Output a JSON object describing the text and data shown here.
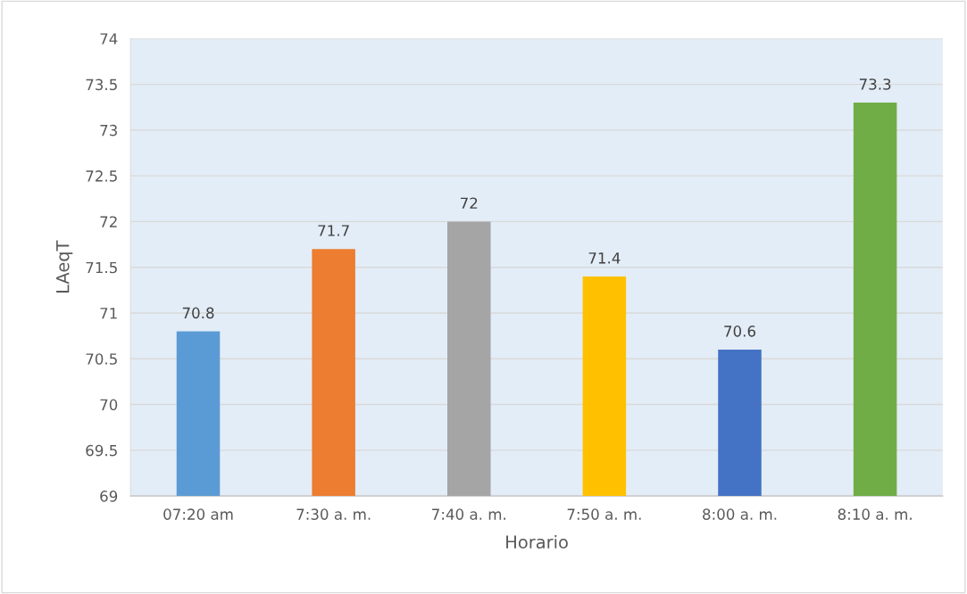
{
  "chart_data": {
    "type": "bar",
    "categories": [
      "07:20 am",
      "7:30 a. m.",
      "7:40 a. m.",
      "7:50 a. m.",
      "8:00 a. m.",
      "8:10 a. m."
    ],
    "values": [
      70.8,
      71.7,
      72,
      71.4,
      70.6,
      73.3
    ],
    "colors": [
      "#5b9bd5",
      "#ed7d31",
      "#a5a5a5",
      "#ffc000",
      "#4472c4",
      "#70ad47"
    ],
    "xlabel": "Horario",
    "ylabel": "LAeqT",
    "ylim": [
      69,
      74
    ],
    "yticks": [
      69,
      69.5,
      70,
      70.5,
      71,
      71.5,
      72,
      72.5,
      73,
      73.5,
      74
    ],
    "grid": "y",
    "data_labels": true
  }
}
